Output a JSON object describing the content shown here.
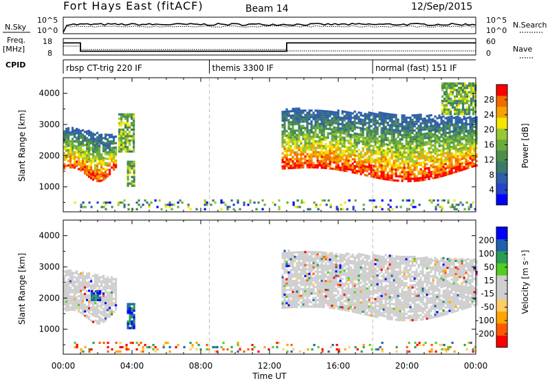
{
  "header": {
    "station": "Fort Hays East (fitACF)",
    "beam": "Beam 14",
    "date": "12/Sep/2015"
  },
  "colors": {
    "power_scale": [
      "#0000ff",
      "#2444cc",
      "#2e5fa8",
      "#3b7a6b",
      "#4b8f4b",
      "#6aac3c",
      "#9ac832",
      "#f5e600",
      "#f7a200",
      "#f26b00",
      "#ff0000"
    ],
    "velocity_scale": [
      "#ff0000",
      "#ff5a00",
      "#ffa500",
      "#ffcc66",
      "#cfcfcf",
      "#cfcfcf",
      "#55cc22",
      "#2a9e55",
      "#2060b0",
      "#0000ff"
    ]
  },
  "top_panels": {
    "nsky_label": "N.Sky",
    "nsearch_label": "N.Search",
    "nsky_ticks": [
      "10^5",
      "10^0"
    ],
    "nsearch_ticks": [
      "10^5",
      "10^0"
    ],
    "freq_label_1": "Freq.",
    "freq_label_2": "[MHz]",
    "freq_ticks": [
      "18",
      "8"
    ],
    "nave_label": "Nave",
    "nave_ticks": [
      "60",
      "0"
    ],
    "cpid_label": "CPID",
    "freq_series": [
      {
        "t0": 0.0,
        "t1": 1.0,
        "mhz": 16.0
      },
      {
        "t0": 1.0,
        "t1": 13.0,
        "mhz": 10.5
      },
      {
        "t0": 13.0,
        "t1": 24.0,
        "mhz": 16.0
      }
    ],
    "cpid_segments": [
      {
        "label": "rbsp CT-trig 220 IF",
        "start_hour": 0.0
      },
      {
        "label": "themis 3300 IF",
        "start_hour": 8.5
      },
      {
        "label": "normal (fast) 151 IF",
        "start_hour": 18.0
      }
    ]
  },
  "chart_data": [
    {
      "type": "heatmap",
      "title": "Power",
      "xlabel": "",
      "ylabel": "Slant Range [km]",
      "colorbar_label": "Power [dB]",
      "xlim_hours": [
        0,
        24
      ],
      "ylim_km": [
        200,
        4500
      ],
      "y_ticks": [
        "4000",
        "3000",
        "2000",
        "1000"
      ],
      "y_tick_values": [
        4000,
        3000,
        2000,
        1000
      ],
      "colorbar_ticks": [
        "28",
        "24",
        "20",
        "16",
        "12",
        "8",
        "4"
      ],
      "colorbar_tick_values": [
        28,
        24,
        20,
        16,
        12,
        8,
        4
      ],
      "colorbar_range": [
        0,
        32
      ],
      "echo_regions": [
        {
          "t_start": 0.0,
          "t_end": 3.1,
          "r_low": 1300,
          "r_high": 2900,
          "level": "strong-bottom"
        },
        {
          "t_start": 3.2,
          "t_end": 4.1,
          "r_low": 2100,
          "r_high": 3300,
          "level": "weak"
        },
        {
          "t_start": 3.7,
          "t_end": 4.1,
          "r_low": 1000,
          "r_high": 1800,
          "level": "weak"
        },
        {
          "t_start": 12.7,
          "t_end": 24.0,
          "r_low": 1300,
          "r_high": 3500,
          "level": "strong-bottom"
        },
        {
          "t_start": 22.0,
          "t_end": 24.0,
          "r_low": 3300,
          "r_high": 4300,
          "level": "weak"
        },
        {
          "t_start": 0.5,
          "t_end": 24.0,
          "r_low": 250,
          "r_high": 600,
          "level": "sparse"
        }
      ]
    },
    {
      "type": "heatmap",
      "title": "Velocity",
      "xlabel": "Time UT",
      "ylabel": "Slant Range [km]",
      "colorbar_label": "Velocity [m s⁻¹]",
      "xlim_hours": [
        0,
        24
      ],
      "ylim_km": [
        200,
        4500
      ],
      "y_ticks": [
        "4000",
        "3000",
        "2000",
        "1000"
      ],
      "y_tick_values": [
        4000,
        3000,
        2000,
        1000
      ],
      "x_ticks": [
        "00:00",
        "04:00",
        "08:00",
        "12:00",
        "16:00",
        "20:00",
        "00:00"
      ],
      "x_tick_hours": [
        0,
        4,
        8,
        12,
        16,
        20,
        24
      ],
      "colorbar_ticks": [
        "200",
        "100",
        "50",
        "15",
        "-15",
        "-50",
        "-100",
        "-200"
      ],
      "colorbar_tick_values": [
        200,
        100,
        50,
        15,
        -15,
        -50,
        -100,
        -200
      ],
      "echo_regions": [
        {
          "t_start": 0.0,
          "t_end": 3.1,
          "r_low": 1300,
          "r_high": 2900,
          "level": "ground"
        },
        {
          "t_start": 1.6,
          "t_end": 2.1,
          "r_low": 1900,
          "r_high": 2200,
          "level": "toward"
        },
        {
          "t_start": 3.7,
          "t_end": 4.1,
          "r_low": 1000,
          "r_high": 1800,
          "level": "toward"
        },
        {
          "t_start": 12.7,
          "t_end": 24.0,
          "r_low": 1400,
          "r_high": 3500,
          "level": "ground"
        },
        {
          "t_start": 0.5,
          "t_end": 24.0,
          "r_low": 250,
          "r_high": 600,
          "level": "mixed"
        }
      ]
    }
  ]
}
